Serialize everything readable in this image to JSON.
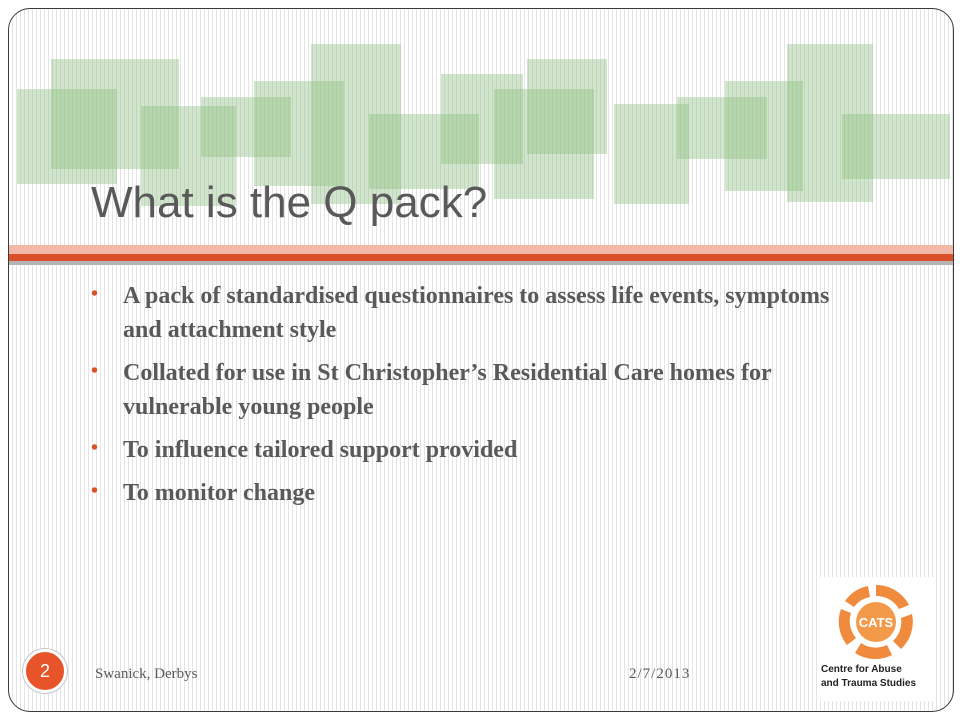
{
  "slide": {
    "title": "What is the Q pack?",
    "bullets": [
      "A pack of standardised questionnaires to assess life events, symptoms and attachment style",
      "Collated for use in St Christopher’s Residential Care homes for vulnerable young people",
      "To influence tailored support provided",
      "To monitor change"
    ],
    "bullet_glyph": "•"
  },
  "footer": {
    "page_number": "2",
    "left_text": "Swanick, Derbys",
    "date": "2/7/2013"
  },
  "logo": {
    "acronym": "CATS",
    "caption_line1": "Centre for Abuse",
    "caption_line2": "and Trauma Studies"
  },
  "colors": {
    "accent": "#d9502a",
    "deco_green": "#a8cf9c",
    "text": "#595959"
  }
}
